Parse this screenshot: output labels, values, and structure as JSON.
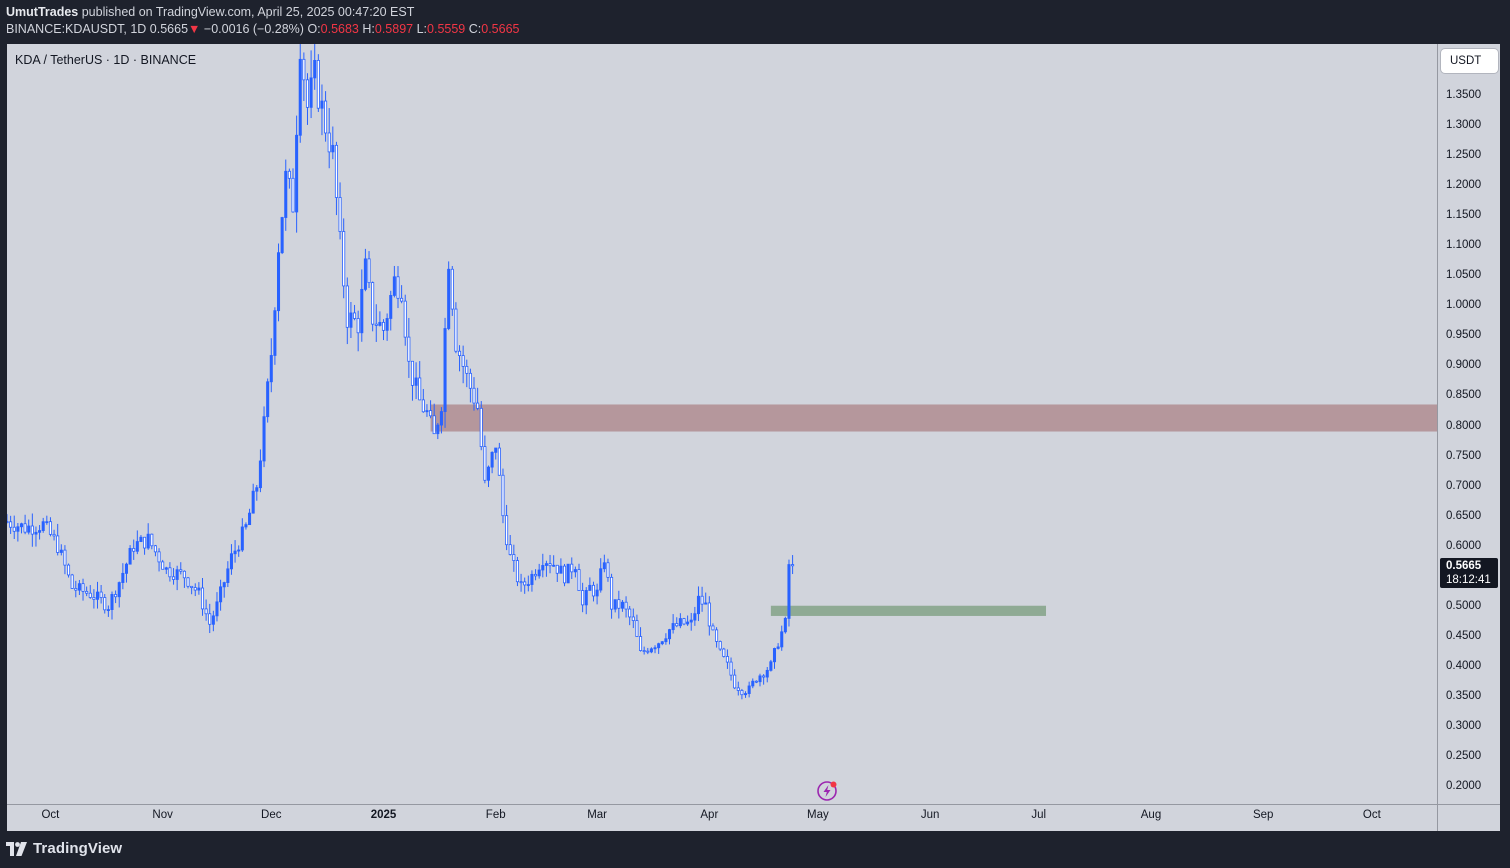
{
  "header": {
    "author": "UmutTrades",
    "published": "published on TradingView.com, April 25, 2025 00:47:20 EST",
    "symbol_line": "BINANCE:KDAUSDT, 1D",
    "last": "0.5665",
    "change_arrow": "▼",
    "change": "−0.0016 (−0.28%)",
    "o_label": "O:",
    "o": "0.5683",
    "h_label": "H:",
    "h": "0.5897",
    "l_label": "L:",
    "l": "0.5559",
    "c_label": "C:",
    "c": "0.5665"
  },
  "pane": {
    "symbol_title": "KDA / TetherUS · 1D · BINANCE",
    "currency_button": "USDT",
    "last_price_value": "0.5665",
    "countdown": "18:12:41"
  },
  "footer": {
    "brand": "TradingView"
  },
  "colors": {
    "background": "#d1d4dc",
    "candle": "#2962ff",
    "resistance_zone": "#b5979c",
    "support_zone": "#8faa94",
    "down_text": "#f23645"
  },
  "icons": {
    "flash": "lightning-icon",
    "logo": "tradingview-logo-icon"
  },
  "chart_data": {
    "type": "candlestick",
    "title": "KDA / TetherUS · 1D · BINANCE",
    "y_axis": {
      "ticks": [
        "1.3500",
        "1.3000",
        "1.2500",
        "1.2000",
        "1.1500",
        "1.1000",
        "1.0500",
        "1.0000",
        "0.9500",
        "0.9000",
        "0.8500",
        "0.8000",
        "0.7500",
        "0.7000",
        "0.6500",
        "0.6000",
        "0.5500",
        "0.5000",
        "0.4500",
        "0.4000",
        "0.3500",
        "0.3000",
        "0.2500",
        "0.2000"
      ],
      "range": [
        0.17,
        1.435
      ]
    },
    "x_axis": {
      "ticks": [
        {
          "label": "Oct",
          "date": "2024-10-01"
        },
        {
          "label": "Nov",
          "date": "2024-11-01"
        },
        {
          "label": "Dec",
          "date": "2024-12-01"
        },
        {
          "label": "2025",
          "date": "2025-01-01",
          "bold": true
        },
        {
          "label": "Feb",
          "date": "2025-02-01"
        },
        {
          "label": "Mar",
          "date": "2025-03-01"
        },
        {
          "label": "Apr",
          "date": "2025-04-01"
        },
        {
          "label": "May",
          "date": "2025-05-01"
        },
        {
          "label": "Jun",
          "date": "2025-06-01"
        },
        {
          "label": "Jul",
          "date": "2025-07-01"
        },
        {
          "label": "Aug",
          "date": "2025-08-01"
        },
        {
          "label": "Sep",
          "date": "2025-09-01"
        },
        {
          "label": "Oct",
          "date": "2025-10-01"
        }
      ],
      "range": [
        "2024-09-19",
        "2025-10-19"
      ]
    },
    "zones": [
      {
        "name": "resistance",
        "from_date": "2025-01-14",
        "to_date": "2025-10-19",
        "low": 0.79,
        "high": 0.835
      },
      {
        "name": "support",
        "from_date": "2025-04-18",
        "to_date": "2025-07-03",
        "low": 0.483,
        "high": 0.5
      }
    ],
    "last_price": 0.5665,
    "close_path": [
      [
        "2024-09-19",
        0.64
      ],
      [
        "2024-09-24",
        0.63
      ],
      [
        "2024-09-29",
        0.635
      ],
      [
        "2024-10-03",
        0.6
      ],
      [
        "2024-10-07",
        0.53
      ],
      [
        "2024-10-12",
        0.52
      ],
      [
        "2024-10-17",
        0.5
      ],
      [
        "2024-10-20",
        0.54
      ],
      [
        "2024-10-24",
        0.6
      ],
      [
        "2024-10-28",
        0.61
      ],
      [
        "2024-11-02",
        0.56
      ],
      [
        "2024-11-07",
        0.55
      ],
      [
        "2024-11-11",
        0.52
      ],
      [
        "2024-11-14",
        0.47
      ],
      [
        "2024-11-16",
        0.5
      ],
      [
        "2024-11-20",
        0.58
      ],
      [
        "2024-11-24",
        0.63
      ],
      [
        "2024-11-27",
        0.7
      ],
      [
        "2024-11-29",
        0.8
      ],
      [
        "2024-12-01",
        0.92
      ],
      [
        "2024-12-03",
        1.1
      ],
      [
        "2024-12-05",
        1.21
      ],
      [
        "2024-12-07",
        1.17
      ],
      [
        "2024-12-09",
        1.44
      ],
      [
        "2024-12-11",
        1.33
      ],
      [
        "2024-12-13",
        1.38
      ],
      [
        "2024-12-16",
        1.3
      ],
      [
        "2024-12-18",
        1.25
      ],
      [
        "2024-12-20",
        1.1
      ],
      [
        "2024-12-22",
        0.98
      ],
      [
        "2024-12-25",
        0.97
      ],
      [
        "2024-12-27",
        1.06
      ],
      [
        "2024-12-29",
        0.98
      ],
      [
        "2025-01-01",
        0.96
      ],
      [
        "2025-01-04",
        1.04
      ],
      [
        "2025-01-06",
        1.03
      ],
      [
        "2025-01-08",
        0.9
      ],
      [
        "2025-01-11",
        0.84
      ],
      [
        "2025-01-13",
        0.82
      ],
      [
        "2025-01-15",
        0.78
      ],
      [
        "2025-01-17",
        0.84
      ],
      [
        "2025-01-19",
        1.08
      ],
      [
        "2025-01-21",
        0.94
      ],
      [
        "2025-01-24",
        0.88
      ],
      [
        "2025-01-27",
        0.83
      ],
      [
        "2025-01-29",
        0.7
      ],
      [
        "2025-02-01",
        0.77
      ],
      [
        "2025-02-03",
        0.65
      ],
      [
        "2025-02-05",
        0.58
      ],
      [
        "2025-02-08",
        0.53
      ],
      [
        "2025-02-11",
        0.55
      ],
      [
        "2025-02-14",
        0.58
      ],
      [
        "2025-02-17",
        0.57
      ],
      [
        "2025-02-20",
        0.55
      ],
      [
        "2025-02-23",
        0.57
      ],
      [
        "2025-02-25",
        0.5
      ],
      [
        "2025-02-27",
        0.53
      ],
      [
        "2025-03-01",
        0.52
      ],
      [
        "2025-03-03",
        0.58
      ],
      [
        "2025-03-05",
        0.5
      ],
      [
        "2025-03-08",
        0.5
      ],
      [
        "2025-03-11",
        0.47
      ],
      [
        "2025-03-13",
        0.42
      ],
      [
        "2025-03-15",
        0.43
      ],
      [
        "2025-03-18",
        0.44
      ],
      [
        "2025-03-21",
        0.46
      ],
      [
        "2025-03-24",
        0.47
      ],
      [
        "2025-03-27",
        0.47
      ],
      [
        "2025-03-29",
        0.51
      ],
      [
        "2025-03-31",
        0.5
      ],
      [
        "2025-04-02",
        0.45
      ],
      [
        "2025-04-04",
        0.42
      ],
      [
        "2025-04-06",
        0.4
      ],
      [
        "2025-04-08",
        0.37
      ],
      [
        "2025-04-10",
        0.36
      ],
      [
        "2025-04-12",
        0.36
      ],
      [
        "2025-04-14",
        0.38
      ],
      [
        "2025-04-16",
        0.39
      ],
      [
        "2025-04-18",
        0.4
      ],
      [
        "2025-04-20",
        0.44
      ],
      [
        "2025-04-22",
        0.47
      ],
      [
        "2025-04-23",
        0.5683
      ],
      [
        "2025-04-24",
        0.5665
      ]
    ]
  }
}
